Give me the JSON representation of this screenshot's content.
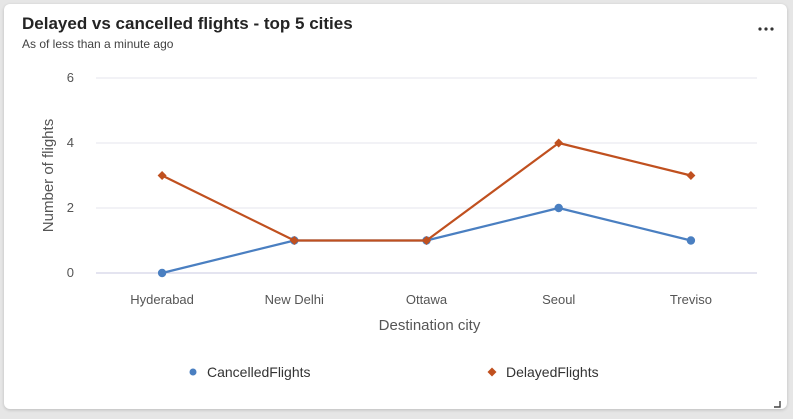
{
  "card": {
    "title": "Delayed vs cancelled flights - top 5 cities",
    "subtitle": "As of less than a minute ago",
    "more_icon": "ellipsis-icon",
    "resize_icon": "resize-corner-icon"
  },
  "legend": [
    {
      "label": "CancelledFlights",
      "marker": "circle",
      "color": "#4a7fc1"
    },
    {
      "label": "DelayedFlights",
      "marker": "diamond",
      "color": "#c0501f"
    }
  ],
  "chart_data": {
    "type": "line",
    "title": "Delayed vs cancelled flights - top 5 cities",
    "subtitle": "As of less than a minute ago",
    "xlabel": "Destination city",
    "ylabel": "Number of flights",
    "categories": [
      "Hyderabad",
      "New Delhi",
      "Ottawa",
      "Seoul",
      "Treviso"
    ],
    "ylim": [
      0,
      6
    ],
    "yticks": [
      0,
      2,
      4,
      6
    ],
    "grid": true,
    "legend_position": "bottom",
    "series": [
      {
        "name": "CancelledFlights",
        "values": [
          0,
          1,
          1,
          2,
          1
        ],
        "color": "#4a7fc1",
        "marker": "circle"
      },
      {
        "name": "DelayedFlights",
        "values": [
          3,
          1,
          1,
          4,
          3
        ],
        "color": "#c0501f",
        "marker": "diamond"
      }
    ]
  }
}
